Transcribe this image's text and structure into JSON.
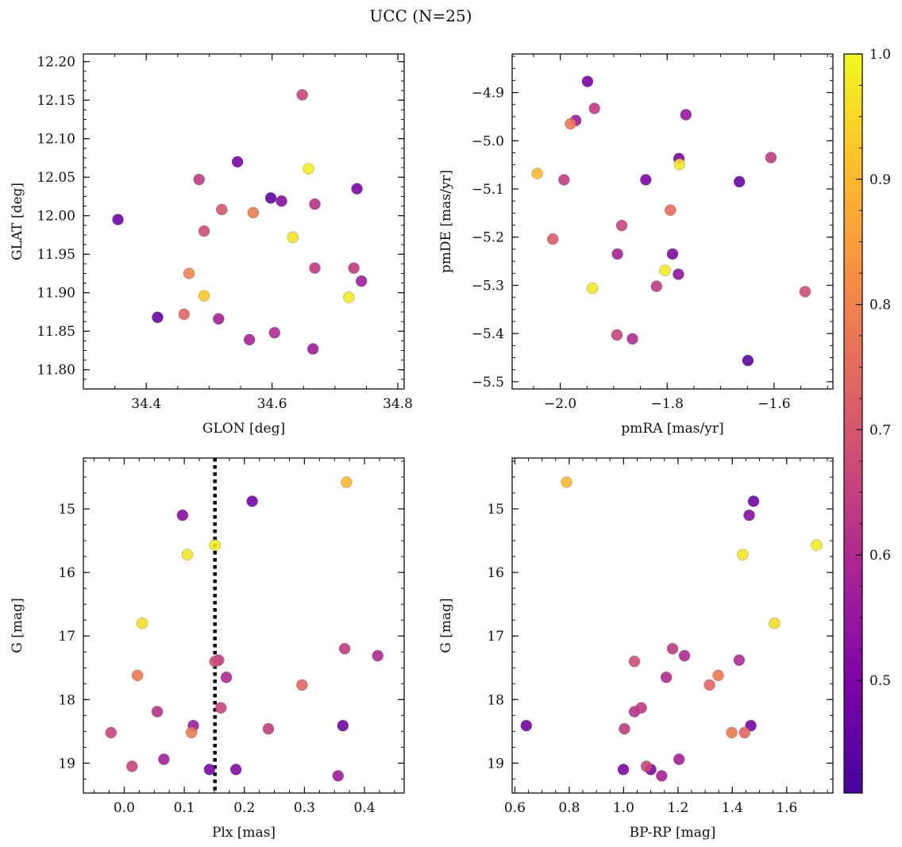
{
  "figure": {
    "title": "UCC (N=25)"
  },
  "colorbar": {
    "range": [
      0.41,
      1.0
    ],
    "ticks": [
      0.5,
      0.6,
      0.7,
      0.8,
      0.9,
      1.0
    ],
    "tick_labels": [
      "0.5",
      "0.6",
      "0.7",
      "0.8",
      "0.9",
      "1.0"
    ],
    "colormap": "plasma"
  },
  "chart_data": [
    {
      "type": "scatter",
      "xlabel": "GLON [deg]",
      "ylabel": "GLAT [deg]",
      "xlim": [
        34.3,
        34.81
      ],
      "ylim": [
        11.775,
        12.21
      ],
      "yinvert": false,
      "xticks": [
        34.4,
        34.6,
        34.8
      ],
      "xtick_labels": [
        "34.4",
        "34.6",
        "34.8"
      ],
      "yticks": [
        11.8,
        11.85,
        11.9,
        11.95,
        12.0,
        12.05,
        12.1,
        12.15,
        12.2
      ],
      "ytick_labels": [
        "11.80",
        "11.85",
        "11.90",
        "11.95",
        "12.00",
        "12.05",
        "12.10",
        "12.15",
        "12.20"
      ],
      "points": [
        {
          "x": 34.648,
          "y": 12.157,
          "c": 0.66
        },
        {
          "x": 34.545,
          "y": 12.07,
          "c": 0.49
        },
        {
          "x": 34.658,
          "y": 12.061,
          "c": 0.98
        },
        {
          "x": 34.484,
          "y": 12.047,
          "c": 0.64
        },
        {
          "x": 34.735,
          "y": 12.035,
          "c": 0.5
        },
        {
          "x": 34.598,
          "y": 12.023,
          "c": 0.45
        },
        {
          "x": 34.615,
          "y": 12.019,
          "c": 0.52
        },
        {
          "x": 34.668,
          "y": 12.015,
          "c": 0.62
        },
        {
          "x": 34.52,
          "y": 12.008,
          "c": 0.7
        },
        {
          "x": 34.57,
          "y": 12.004,
          "c": 0.78
        },
        {
          "x": 34.355,
          "y": 11.995,
          "c": 0.47
        },
        {
          "x": 34.492,
          "y": 11.98,
          "c": 0.68
        },
        {
          "x": 34.633,
          "y": 11.972,
          "c": 0.97
        },
        {
          "x": 34.668,
          "y": 11.932,
          "c": 0.64
        },
        {
          "x": 34.73,
          "y": 11.932,
          "c": 0.64
        },
        {
          "x": 34.468,
          "y": 11.925,
          "c": 0.8
        },
        {
          "x": 34.742,
          "y": 11.915,
          "c": 0.57
        },
        {
          "x": 34.492,
          "y": 11.896,
          "c": 0.93
        },
        {
          "x": 34.722,
          "y": 11.894,
          "c": 0.98
        },
        {
          "x": 34.46,
          "y": 11.872,
          "c": 0.74
        },
        {
          "x": 34.418,
          "y": 11.868,
          "c": 0.46
        },
        {
          "x": 34.515,
          "y": 11.866,
          "c": 0.58
        },
        {
          "x": 34.604,
          "y": 11.848,
          "c": 0.6
        },
        {
          "x": 34.564,
          "y": 11.839,
          "c": 0.58
        },
        {
          "x": 34.665,
          "y": 11.827,
          "c": 0.56
        }
      ]
    },
    {
      "type": "scatter",
      "xlabel": "pmRA [mas/yr]",
      "ylabel": "pmDE [mas/yr]",
      "xlim": [
        -2.09,
        -1.49
      ],
      "ylim": [
        -5.515,
        -4.82
      ],
      "yinvert": false,
      "xticks": [
        -2.0,
        -1.8,
        -1.6
      ],
      "xtick_labels": [
        "−2.0",
        "−1.8",
        "−1.6"
      ],
      "yticks": [
        -5.5,
        -5.4,
        -5.3,
        -5.2,
        -5.1,
        -5.0,
        -4.9
      ],
      "ytick_labels": [
        "−5.5",
        "−5.4",
        "−5.3",
        "−5.2",
        "−5.1",
        "−5.0",
        "−4.9"
      ],
      "points": [
        {
          "x": -1.949,
          "y": -4.877,
          "c": 0.49
        },
        {
          "x": -1.936,
          "y": -4.933,
          "c": 0.64
        },
        {
          "x": -1.765,
          "y": -4.946,
          "c": 0.55
        },
        {
          "x": -1.971,
          "y": -4.958,
          "c": 0.56
        },
        {
          "x": -1.981,
          "y": -4.965,
          "c": 0.78
        },
        {
          "x": -1.778,
          "y": -5.037,
          "c": 0.5
        },
        {
          "x": -1.606,
          "y": -5.035,
          "c": 0.64
        },
        {
          "x": -1.777,
          "y": -5.049,
          "c": 0.97
        },
        {
          "x": -2.043,
          "y": -5.068,
          "c": 0.9
        },
        {
          "x": -1.993,
          "y": -5.081,
          "c": 0.64
        },
        {
          "x": -1.84,
          "y": -5.081,
          "c": 0.5
        },
        {
          "x": -1.665,
          "y": -5.085,
          "c": 0.47
        },
        {
          "x": -1.794,
          "y": -5.144,
          "c": 0.75
        },
        {
          "x": -1.885,
          "y": -5.176,
          "c": 0.66
        },
        {
          "x": -2.014,
          "y": -5.204,
          "c": 0.72
        },
        {
          "x": -1.893,
          "y": -5.235,
          "c": 0.58
        },
        {
          "x": -1.79,
          "y": -5.235,
          "c": 0.51
        },
        {
          "x": -1.804,
          "y": -5.269,
          "c": 0.98
        },
        {
          "x": -1.779,
          "y": -5.277,
          "c": 0.54
        },
        {
          "x": -1.82,
          "y": -5.302,
          "c": 0.64
        },
        {
          "x": -1.94,
          "y": -5.306,
          "c": 0.98
        },
        {
          "x": -1.542,
          "y": -5.313,
          "c": 0.68
        },
        {
          "x": -1.894,
          "y": -5.403,
          "c": 0.66
        },
        {
          "x": -1.865,
          "y": -5.411,
          "c": 0.6
        },
        {
          "x": -1.649,
          "y": -5.456,
          "c": 0.45
        }
      ]
    },
    {
      "type": "scatter",
      "xlabel": "Plx [mas]",
      "ylabel": "G [mag]",
      "xlim": [
        -0.068,
        0.466
      ],
      "ylim": [
        14.2,
        19.47
      ],
      "yinvert": true,
      "vline": {
        "x": 0.151,
        "style": "dotted"
      },
      "xticks": [
        0.0,
        0.1,
        0.2,
        0.3,
        0.4
      ],
      "xtick_labels": [
        "0.0",
        "0.1",
        "0.2",
        "0.3",
        "0.4"
      ],
      "yticks": [
        15,
        16,
        17,
        18,
        19
      ],
      "ytick_labels": [
        "15",
        "16",
        "17",
        "18",
        "19"
      ],
      "points": [
        {
          "x": 0.37,
          "y": 14.58,
          "c": 0.9
        },
        {
          "x": 0.213,
          "y": 14.88,
          "c": 0.48
        },
        {
          "x": 0.097,
          "y": 15.1,
          "c": 0.52
        },
        {
          "x": 0.151,
          "y": 15.57,
          "c": 0.98
        },
        {
          "x": 0.105,
          "y": 15.72,
          "c": 0.97
        },
        {
          "x": 0.03,
          "y": 16.8,
          "c": 0.96
        },
        {
          "x": 0.367,
          "y": 17.2,
          "c": 0.64
        },
        {
          "x": 0.422,
          "y": 17.31,
          "c": 0.6
        },
        {
          "x": 0.157,
          "y": 17.38,
          "c": 0.64
        },
        {
          "x": 0.151,
          "y": 17.4,
          "c": 0.68
        },
        {
          "x": 0.022,
          "y": 17.62,
          "c": 0.78
        },
        {
          "x": 0.17,
          "y": 17.65,
          "c": 0.6
        },
        {
          "x": 0.296,
          "y": 17.77,
          "c": 0.74
        },
        {
          "x": 0.161,
          "y": 18.13,
          "c": 0.66
        },
        {
          "x": 0.055,
          "y": 18.19,
          "c": 0.62
        },
        {
          "x": 0.115,
          "y": 18.41,
          "c": 0.56
        },
        {
          "x": 0.364,
          "y": 18.41,
          "c": 0.48
        },
        {
          "x": 0.24,
          "y": 18.46,
          "c": 0.64
        },
        {
          "x": 0.112,
          "y": 18.52,
          "c": 0.78
        },
        {
          "x": -0.022,
          "y": 18.52,
          "c": 0.66
        },
        {
          "x": 0.066,
          "y": 18.94,
          "c": 0.58
        },
        {
          "x": 0.013,
          "y": 19.05,
          "c": 0.66
        },
        {
          "x": 0.142,
          "y": 19.1,
          "c": 0.5
        },
        {
          "x": 0.186,
          "y": 19.1,
          "c": 0.51
        },
        {
          "x": 0.356,
          "y": 19.2,
          "c": 0.57
        }
      ]
    },
    {
      "type": "scatter",
      "xlabel": "BP-RP [mag]",
      "ylabel": "G [mag]",
      "xlim": [
        0.59,
        1.77
      ],
      "ylim": [
        14.2,
        19.47
      ],
      "yinvert": true,
      "xticks": [
        0.6,
        0.8,
        1.0,
        1.2,
        1.4,
        1.6
      ],
      "xtick_labels": [
        "0.6",
        "0.8",
        "1.0",
        "1.2",
        "1.4",
        "1.6"
      ],
      "yticks": [
        15,
        16,
        17,
        18,
        19
      ],
      "ytick_labels": [
        "15",
        "16",
        "17",
        "18",
        "19"
      ],
      "points": [
        {
          "x": 0.79,
          "y": 14.58,
          "c": 0.9
        },
        {
          "x": 1.478,
          "y": 14.88,
          "c": 0.48
        },
        {
          "x": 1.462,
          "y": 15.1,
          "c": 0.52
        },
        {
          "x": 1.71,
          "y": 15.57,
          "c": 0.98
        },
        {
          "x": 1.438,
          "y": 15.72,
          "c": 0.97
        },
        {
          "x": 1.555,
          "y": 16.8,
          "c": 0.96
        },
        {
          "x": 1.18,
          "y": 17.2,
          "c": 0.64
        },
        {
          "x": 1.224,
          "y": 17.31,
          "c": 0.6
        },
        {
          "x": 1.425,
          "y": 17.38,
          "c": 0.6
        },
        {
          "x": 1.04,
          "y": 17.4,
          "c": 0.68
        },
        {
          "x": 1.348,
          "y": 17.62,
          "c": 0.78
        },
        {
          "x": 1.157,
          "y": 17.65,
          "c": 0.6
        },
        {
          "x": 1.316,
          "y": 17.77,
          "c": 0.74
        },
        {
          "x": 1.065,
          "y": 18.13,
          "c": 0.64
        },
        {
          "x": 1.04,
          "y": 18.19,
          "c": 0.62
        },
        {
          "x": 0.642,
          "y": 18.41,
          "c": 0.48
        },
        {
          "x": 1.468,
          "y": 18.41,
          "c": 0.48
        },
        {
          "x": 1.003,
          "y": 18.46,
          "c": 0.64
        },
        {
          "x": 1.398,
          "y": 18.52,
          "c": 0.78
        },
        {
          "x": 1.445,
          "y": 18.52,
          "c": 0.74
        },
        {
          "x": 1.204,
          "y": 18.94,
          "c": 0.58
        },
        {
          "x": 1.084,
          "y": 19.05,
          "c": 0.66
        },
        {
          "x": 0.999,
          "y": 19.1,
          "c": 0.5
        },
        {
          "x": 1.1,
          "y": 19.1,
          "c": 0.5
        },
        {
          "x": 1.14,
          "y": 19.2,
          "c": 0.58
        }
      ]
    }
  ]
}
